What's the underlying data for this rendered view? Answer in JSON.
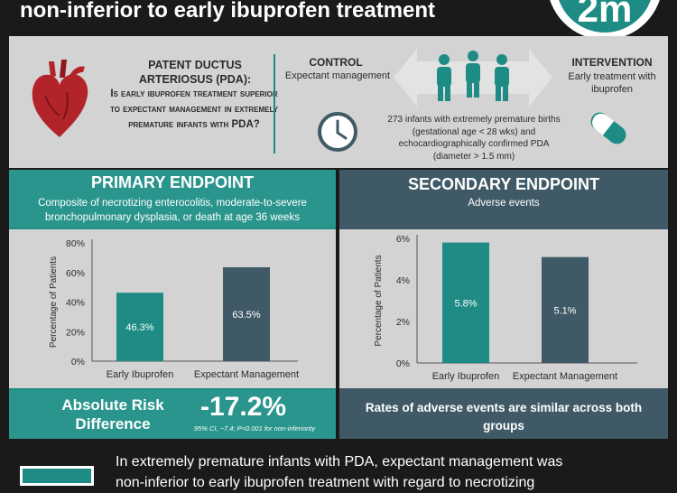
{
  "header": {
    "title": "non-inferior to early ibuprofen treatment",
    "logo_text": "2m"
  },
  "question": {
    "title": "PATENT DUCTUS ARTERIOSUS (PDA):",
    "text": "Is early ibuprofen treatment superior to expectant management in extremely premature infants with PDA?"
  },
  "design": {
    "control_title": "CONTROL",
    "control_sub": "Expectant management",
    "intervention_title": "INTERVENTION",
    "intervention_sub": "Early treatment with ibuprofen",
    "population": "273 infants with extremely premature births (gestational age < 28 wks) and echocardiographically confirmed PDA (diameter > 1.5 mm)"
  },
  "primary": {
    "title": "PRIMARY ENDPOINT",
    "description": "Composite of necrotizing enterocolitis, moderate-to-severe bronchopulmonary dysplasia, or death at age 36 weeks",
    "ard_label": "Absolute Risk Difference",
    "ard_value": "-17.2%",
    "ard_ci": "95% CI, −7.4; P<0.001 for non-inferiority"
  },
  "secondary": {
    "title": "SECONDARY ENDPOINT",
    "description": "Adverse events",
    "note": "Rates of adverse events are similar across both groups"
  },
  "conclusion": {
    "line1": "In extremely premature infants with PDA, expectant management was",
    "line2": "non-inferior to early ibuprofen treatment with regard to necrotizing"
  },
  "colors": {
    "teal": "#1e8c84",
    "slate": "#3f5a66",
    "gray": "#d3d3d3",
    "heart": "#b3242a"
  },
  "chart_data": [
    {
      "type": "bar",
      "categories": [
        "Early Ibuprofen",
        "Expectant Management"
      ],
      "values": [
        46.3,
        63.5
      ],
      "value_labels": [
        "46.3%",
        "63.5%"
      ],
      "ylabel": "Percentage of Patients",
      "ylim": [
        0,
        80
      ],
      "yticks": [
        "0%",
        "20%",
        "40%",
        "60%",
        "80%"
      ],
      "colors": [
        "#1e8c84",
        "#3f5a66"
      ]
    },
    {
      "type": "bar",
      "categories": [
        "Early Ibuprofen",
        "Expectant Management"
      ],
      "values": [
        5.8,
        5.1
      ],
      "value_labels": [
        "5.8%",
        "5.1%"
      ],
      "ylabel": "Percentage of Patients",
      "ylim": [
        0,
        6
      ],
      "yticks": [
        "0%",
        "2%",
        "4%",
        "6%"
      ],
      "colors": [
        "#1e8c84",
        "#3f5a66"
      ]
    }
  ]
}
